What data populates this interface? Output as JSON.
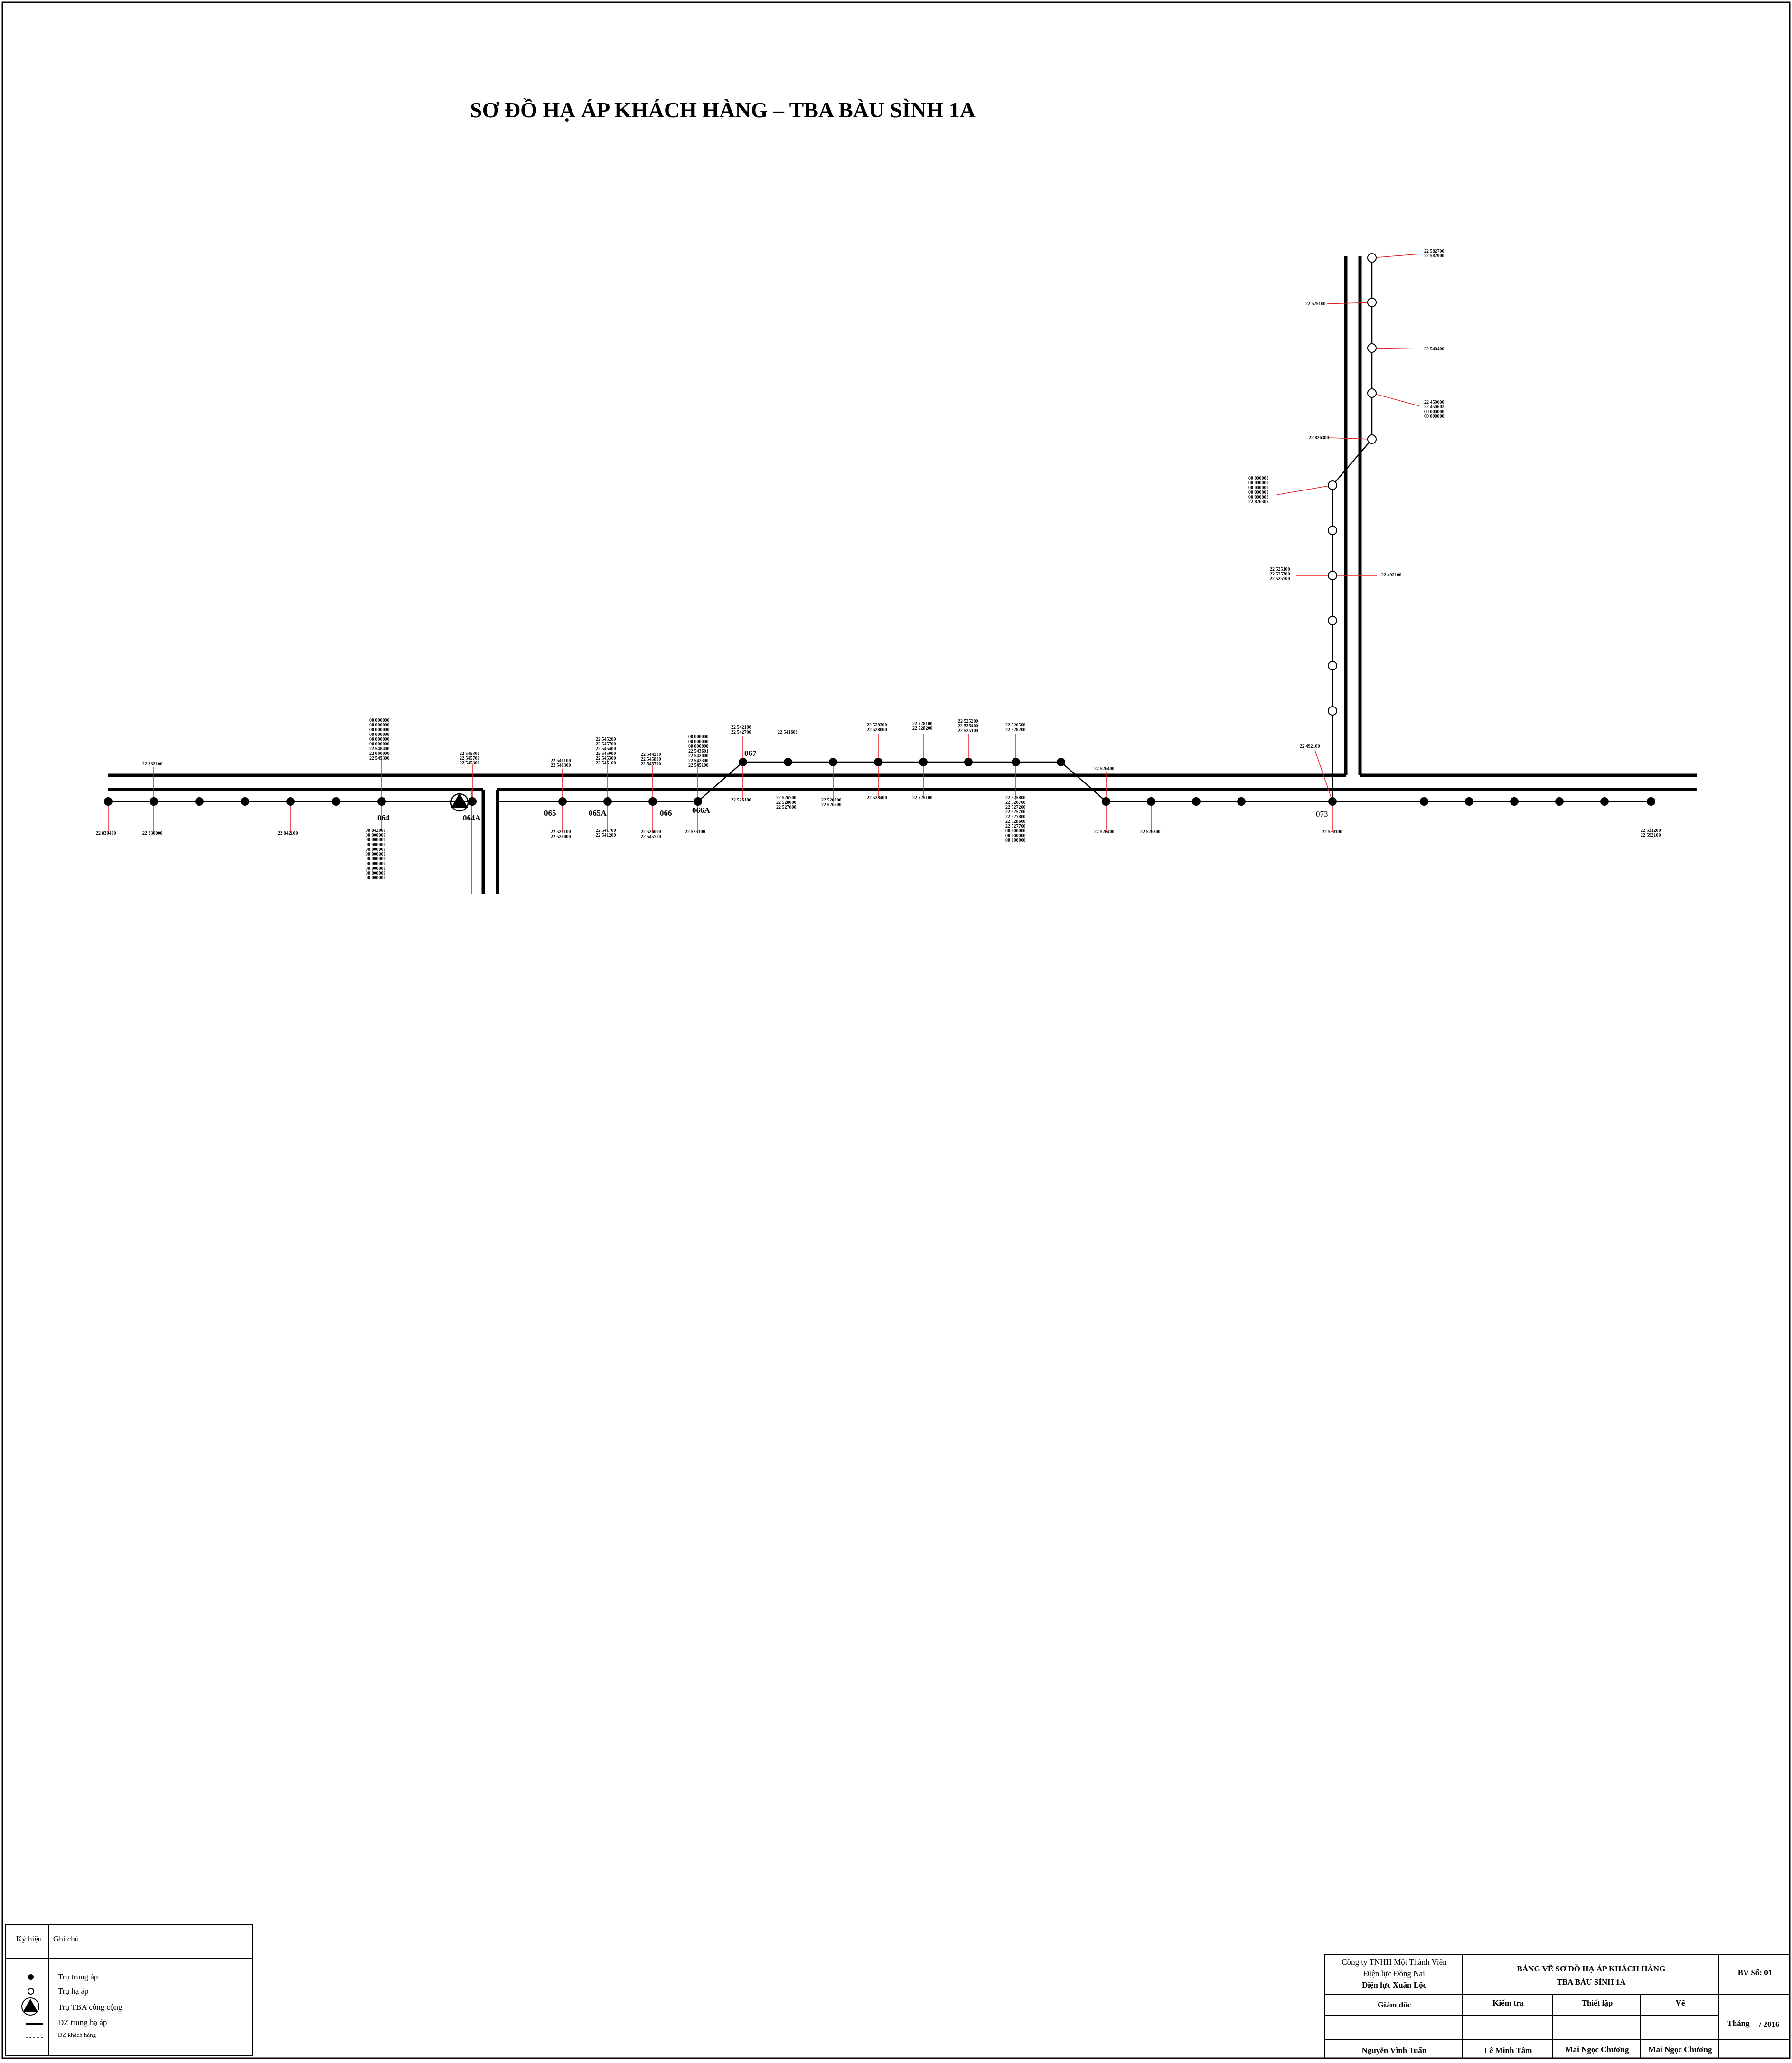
{
  "title": "SƠ ĐỒ HẠ ÁP KHÁCH HÀNG – TBA BÀU SÌNH 1A",
  "pole_labels": {
    "p064": "064",
    "p064A": "064A",
    "p065": "065",
    "p065A": "065A",
    "p066": "066",
    "p066A": "066A",
    "p067": "067",
    "p073": "073"
  },
  "customer_labels": {
    "l1": [
      "22 832100"
    ],
    "l2": [
      "22 830400"
    ],
    "l3": [
      "22 830000"
    ],
    "l4": [
      "22 842100"
    ],
    "l5": [
      "00 000000",
      "00 000000",
      "00 000000",
      "00 000000",
      "00 000000",
      "00 000000",
      "22 548400",
      "22 000000",
      "22 545300"
    ],
    "l6": [
      "00 842000",
      "00 000000",
      "00 000000",
      "00 000000",
      "00 000000",
      "00 000000",
      "00 000000",
      "00 000000",
      "00 000000",
      "00 000000",
      "00 000000"
    ],
    "l7": [
      "22 545300",
      "22 545700",
      "22 545300"
    ],
    "l8": [
      "22 546100",
      "22 546300"
    ],
    "l9": [
      "22 526100",
      "22 528000"
    ],
    "l10": [
      "22 545200",
      "22 545700",
      "22 545400",
      "22 545000",
      "22 545300",
      "22 545100"
    ],
    "l11": [
      "22 541700",
      "22 541200"
    ],
    "l12": [
      "22 544200",
      "22 545800",
      "22 545700"
    ],
    "l13": [
      "22 526000",
      "22 545700"
    ],
    "l14": [
      "00 000000",
      "00 000000",
      "00 000000",
      "22 543601",
      "22 542000",
      "22 542300",
      "22 545100"
    ],
    "l15": [
      "22 525100"
    ],
    "l16": [
      "22 542100",
      "22 542700"
    ],
    "l17": [
      "22 526100"
    ],
    "l18": [
      "22 541600"
    ],
    "l19": [
      "22 526700",
      "22 528000",
      "22 527600"
    ],
    "l20": [
      "22 526200",
      "22 526600"
    ],
    "l21": [
      "22 528300",
      "22 528000"
    ],
    "l22": [
      "22 528400"
    ],
    "l23": [
      "22 528100",
      "22 528200"
    ],
    "l24": [
      "22 525100"
    ],
    "l25": [
      "22 525200",
      "22 525400",
      "22 525100"
    ],
    "l26": [
      "22 526500",
      "22 528200"
    ],
    "l27": [
      "22 525800",
      "22 526700",
      "22 527200",
      "22 525700",
      "22 527800",
      "22 528600",
      "22 527700",
      "00 000000",
      "00 000000",
      "00 000000"
    ],
    "l28": [
      "22 526400"
    ],
    "l29": [
      "22 526400"
    ],
    "l30": [
      "22 526300"
    ],
    "l31": [
      "22 492100"
    ],
    "l32": [
      "22 530100"
    ],
    "l33": [
      "22 531200",
      "22 592100"
    ],
    "l34": [
      "22 582700",
      "22 582900"
    ],
    "l35": [
      "22 525100"
    ],
    "l36": [
      "22 540400"
    ],
    "l37": [
      "22 450600",
      "22 450602",
      "00 000000",
      "00 000000"
    ],
    "l38": [
      "22 826300"
    ],
    "l39": [
      "00 000000",
      "00 000000",
      "00 000000",
      "00 000000",
      "00 000000",
      "22 826305"
    ],
    "l40": [
      "22 525100",
      "22 525300",
      "22 525700"
    ],
    "l41": [
      "22 492100"
    ]
  },
  "legend": {
    "col1": "Ký hiệu",
    "col2": "Ghi chú",
    "items": [
      "Trụ trung áp",
      "Trụ hạ áp",
      "Trụ TBA công cộng",
      "DZ trung hạ áp",
      "DZ khách hàng"
    ]
  },
  "title_block": {
    "company_1": "Công ty TNHH Một Thành Viên",
    "company_2": "Điện lực Đồng Nai",
    "company_3": "Điện lực Xuân Lộc",
    "drawing_1": "BẢNG VẼ SƠ ĐỒ HẠ ÁP KHÁCH HÀNG",
    "drawing_2": "TBA BÀU SÌNH 1A",
    "sheet_no": "BV Số: 01",
    "role_director": "Giám đốc",
    "role_check": "Kiểm tra",
    "role_prepare": "Thiết lập",
    "role_draw": "Vẽ",
    "month_label": "Tháng",
    "year": "/ 2016",
    "name_director": "Nguyễn Vĩnh Tuấn",
    "name_check": "Lê Minh Tâm",
    "name_prepare": "Mai Ngọc Chương",
    "name_draw": "Mai Ngọc Chương"
  }
}
